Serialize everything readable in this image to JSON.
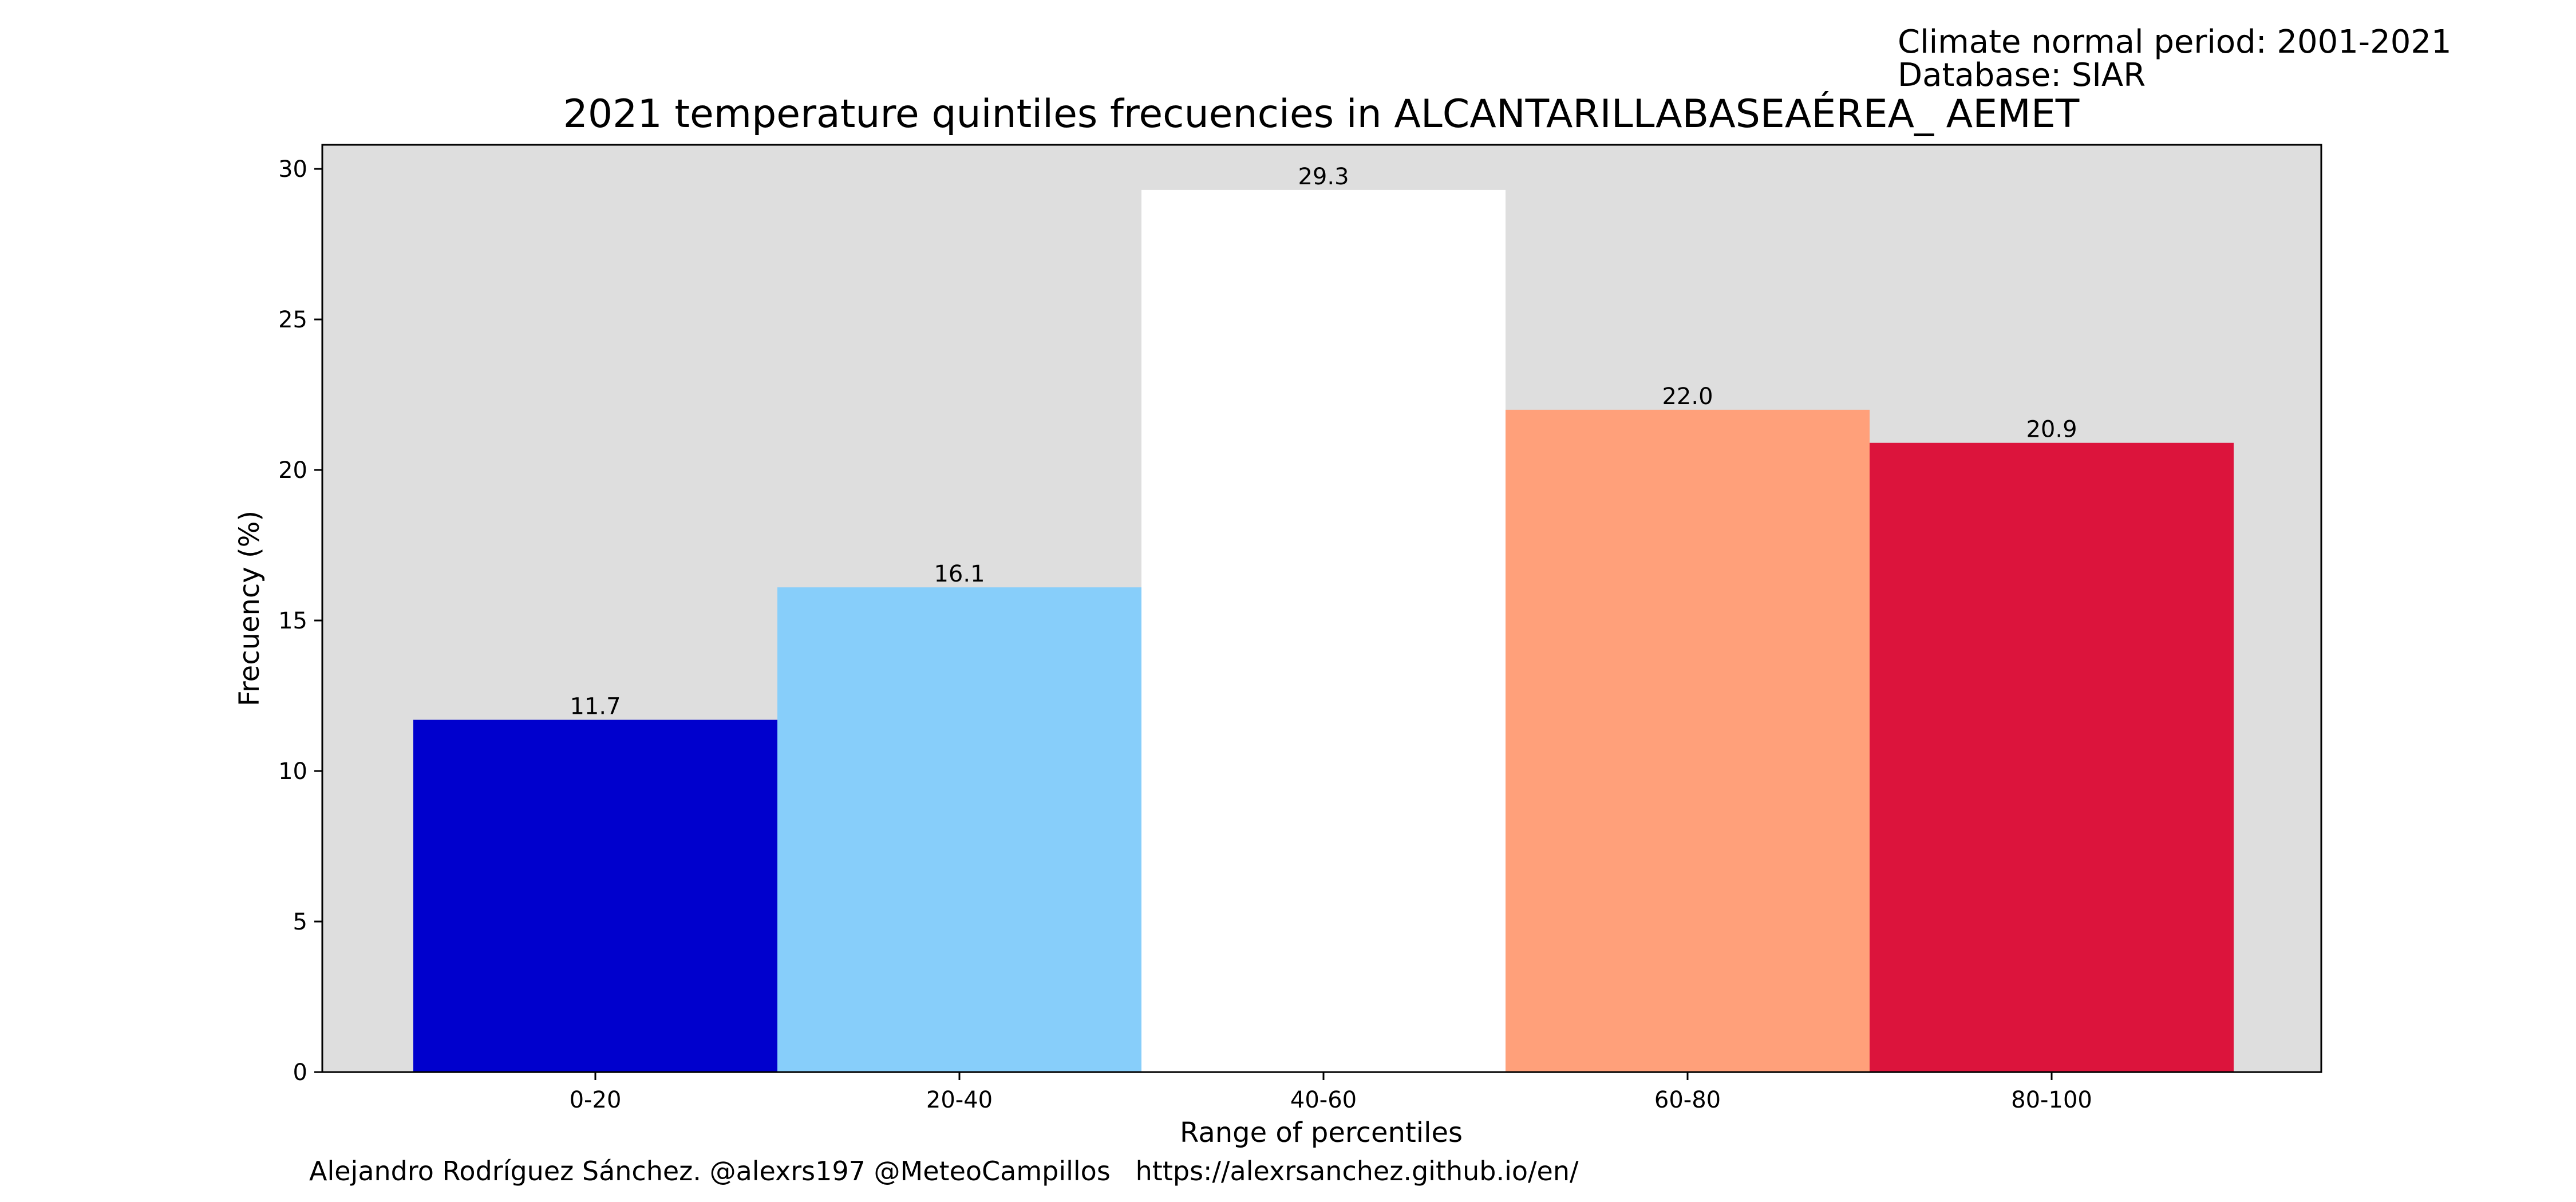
{
  "header": {
    "period_line": "Climate normal period: 2001-2021",
    "database_line": "Database: SIAR"
  },
  "footer": {
    "credits": "Alejandro Rodríguez Sánchez. @alexrs197 @MeteoCampillos   https://alexrsanchez.github.io/en/"
  },
  "chart_data": {
    "type": "bar",
    "title": "2021 temperature quintiles frecuencies in ALCANTARILLABASEAÉREA_ AEMET",
    "xlabel": "Range of percentiles",
    "ylabel": "Frecuency (%)",
    "categories": [
      "0-20",
      "20-40",
      "40-60",
      "60-80",
      "80-100"
    ],
    "values": [
      11.7,
      16.1,
      29.3,
      22.0,
      20.9
    ],
    "value_labels": [
      "11.7",
      "16.1",
      "29.3",
      "22.0",
      "20.9"
    ],
    "bar_colors": [
      "#0000cd",
      "#87cefa",
      "#ffffff",
      "#ffa07a",
      "#dc143c"
    ],
    "ylim": [
      0,
      30.8
    ],
    "yticks": [
      0,
      5,
      10,
      15,
      20,
      25,
      30
    ],
    "plot_background": "#dedede",
    "grid": false,
    "legend": "none"
  }
}
